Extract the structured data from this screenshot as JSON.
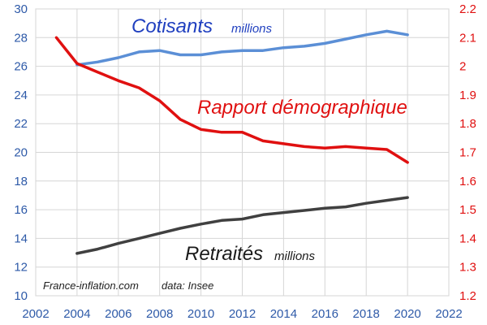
{
  "chart_data": {
    "type": "line",
    "x": [
      2003,
      2004,
      2005,
      2006,
      2007,
      2008,
      2009,
      2010,
      2011,
      2012,
      2013,
      2014,
      2015,
      2016,
      2017,
      2018,
      2019,
      2020
    ],
    "xlim": [
      2002,
      2022
    ],
    "x_ticks": [
      "2002",
      "2004",
      "2006",
      "2008",
      "2010",
      "2012",
      "2014",
      "2016",
      "2018",
      "2020",
      "2022"
    ],
    "left_axis": {
      "ylim": [
        10,
        30
      ],
      "ticks": [
        "10",
        "12",
        "14",
        "16",
        "18",
        "20",
        "22",
        "24",
        "26",
        "28",
        "30"
      ],
      "color": "#2e5aa8"
    },
    "right_axis": {
      "ylim": [
        1.2,
        2.2
      ],
      "ticks": [
        "1.2",
        "1.3",
        "1.4",
        "1.5",
        "1.6",
        "1.7",
        "1.8",
        "1.9",
        "2",
        "2.1",
        "2.2"
      ],
      "color": "#e01010"
    },
    "grid": true,
    "series": [
      {
        "name": "Cotisants",
        "unit": "millions",
        "axis": "left",
        "color": "#5b8fd6",
        "x": [
          2004,
          2005,
          2006,
          2007,
          2008,
          2009,
          2010,
          2011,
          2012,
          2013,
          2014,
          2015,
          2016,
          2017,
          2018,
          2019,
          2020
        ],
        "values": [
          26.1,
          26.3,
          26.6,
          27.0,
          27.1,
          26.8,
          26.8,
          27.0,
          27.1,
          27.1,
          27.3,
          27.4,
          27.6,
          27.9,
          28.2,
          28.45,
          28.2
        ]
      },
      {
        "name": "Rapport démographique",
        "unit": "",
        "axis": "right",
        "color": "#e01010",
        "x": [
          2003,
          2004,
          2005,
          2006,
          2007,
          2008,
          2009,
          2010,
          2011,
          2012,
          2013,
          2014,
          2015,
          2016,
          2017,
          2018,
          2019,
          2020
        ],
        "values": [
          2.1,
          2.01,
          1.98,
          1.95,
          1.925,
          1.88,
          1.815,
          1.78,
          1.77,
          1.77,
          1.74,
          1.73,
          1.72,
          1.715,
          1.72,
          1.715,
          1.71,
          1.665
        ]
      },
      {
        "name": "Retraités",
        "unit": "millions",
        "axis": "left",
        "color": "#404040",
        "x": [
          2004,
          2005,
          2006,
          2007,
          2008,
          2009,
          2010,
          2011,
          2012,
          2013,
          2014,
          2015,
          2016,
          2017,
          2018,
          2019,
          2020
        ],
        "values": [
          12.95,
          13.25,
          13.65,
          14.0,
          14.35,
          14.7,
          15.0,
          15.25,
          15.35,
          15.65,
          15.8,
          15.95,
          16.1,
          16.2,
          16.45,
          16.65,
          16.85
        ]
      }
    ],
    "labels": {
      "cotisants": "Cotisants",
      "cotisants_unit": "millions",
      "rapport": "Rapport démographique",
      "retraites": "Retraités",
      "retraites_unit": "millions",
      "source": "France-inflation.com",
      "data_source": "data: Insee"
    }
  }
}
